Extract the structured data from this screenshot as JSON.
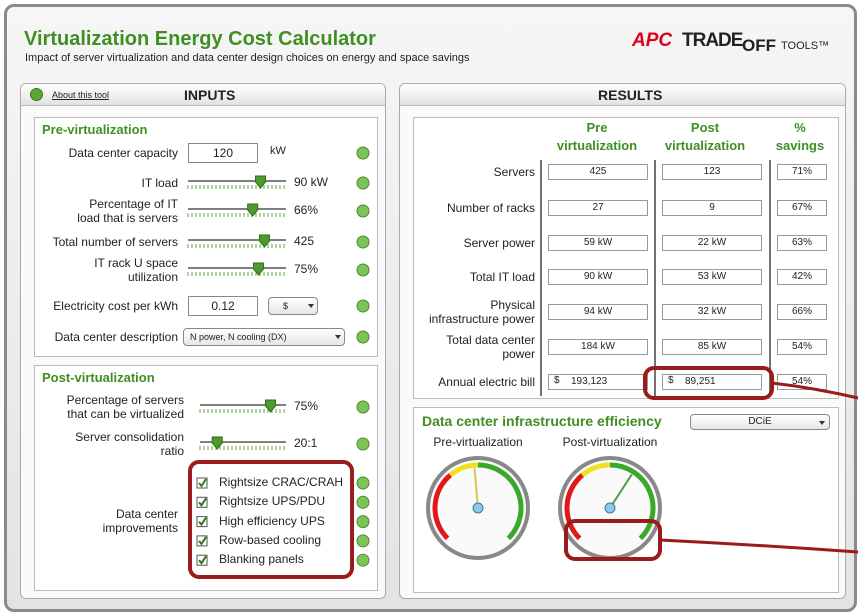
{
  "header": {
    "title": "Virtualization Energy Cost Calculator",
    "subtitle": "Impact of server virtualization and data center design choices on energy and space savings",
    "logo": [
      "APC",
      "TRADE",
      "OFF",
      "TOOLS™"
    ]
  },
  "inputs": {
    "about": "About this tool",
    "title": "INPUTS",
    "pre": {
      "title": "Pre-virtualization",
      "rows": [
        {
          "label": [
            "Data center capacity"
          ],
          "input": "120",
          "unit": "kW"
        },
        {
          "label": [
            "IT load"
          ],
          "slider": "90 kW"
        },
        {
          "label": [
            "Percentage of IT",
            "load that is servers"
          ],
          "slider": "66%"
        },
        {
          "label": [
            "Total number of servers"
          ],
          "slider": "425"
        },
        {
          "label": [
            "IT rack U space",
            "utilization"
          ],
          "slider": "75%"
        },
        {
          "label": [
            "Electricity cost per kWh"
          ],
          "input": "0.12",
          "select": "$"
        },
        {
          "label": [
            "Data center description"
          ],
          "select": "N power, N cooling (DX)"
        }
      ]
    },
    "post": {
      "title": "Post-virtualization",
      "rows": [
        {
          "label": [
            "Percentage of servers",
            "that can be virtualized"
          ],
          "slider": "75%"
        },
        {
          "label": [
            "Server consolidation",
            "ratio"
          ],
          "slider": "20:1"
        }
      ],
      "improvements": {
        "label": [
          "Data center",
          "improvements"
        ],
        "options": [
          "Rightsize CRAC/CRAH",
          "Rightsize UPS/PDU",
          "High efficiency UPS",
          "Row-based cooling",
          "Blanking panels"
        ]
      }
    }
  },
  "results": {
    "title": "RESULTS",
    "columns": [
      [
        "Pre",
        "virtualization"
      ],
      [
        "Post",
        "virtualization"
      ],
      [
        "%",
        "savings"
      ]
    ],
    "rows": [
      {
        "label": [
          "Servers"
        ],
        "pre": "425",
        "post": "123",
        "savings": "71%"
      },
      {
        "label": [
          "Number of racks"
        ],
        "pre": "27",
        "post": "9",
        "savings": "67%"
      },
      {
        "label": [
          "Server power"
        ],
        "pre": "59 kW",
        "post": "22 kW",
        "savings": "63%"
      },
      {
        "label": [
          "Total IT load"
        ],
        "pre": "90 kW",
        "post": "53 kW",
        "savings": "42%"
      },
      {
        "label": [
          "Physical",
          "infrastructure power"
        ],
        "pre": "94 kW",
        "post": "32 kW",
        "savings": "66%"
      },
      {
        "label": [
          "Total data center",
          "power"
        ],
        "pre": "184 kW",
        "post": "85 kW",
        "savings": "54%"
      },
      {
        "label": [
          "Annual electric bill"
        ],
        "currency": "$",
        "pre": "193,123",
        "post": "89,251",
        "savings": "54%"
      }
    ],
    "efficiency": {
      "title": "Data center infrastructure efficiency",
      "metric": "DCiE",
      "gauges": [
        {
          "label": "Pre-virtualization",
          "value": "48.99%"
        },
        {
          "label": "Post-virtualization",
          "value": "61.96%"
        }
      ]
    }
  }
}
